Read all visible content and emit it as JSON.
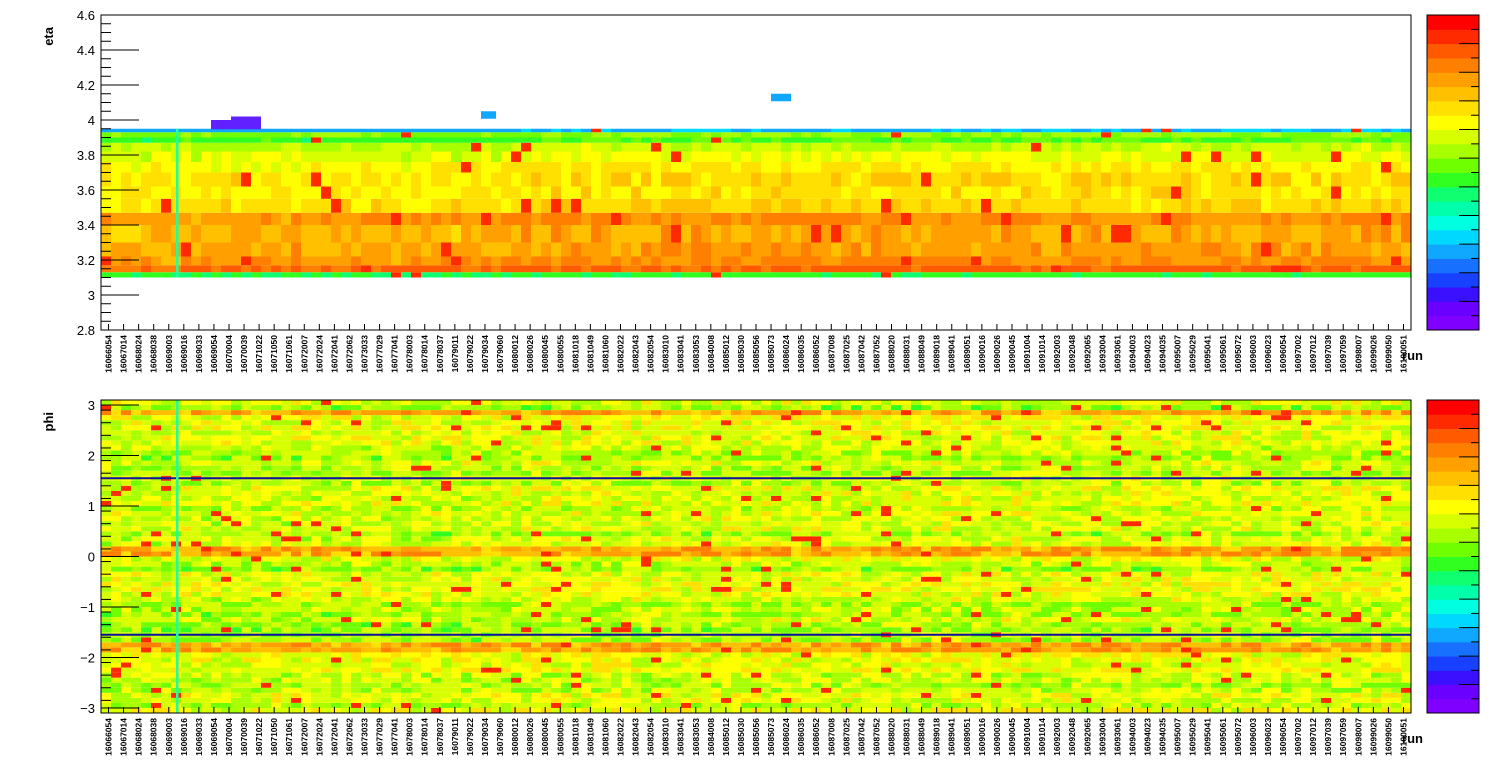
{
  "chart_data": [
    {
      "type": "heatmap",
      "ylabel": "eta",
      "xlabel": "run",
      "ylim": [
        2.8,
        4.6
      ],
      "yticks": [
        2.8,
        3,
        3.2,
        3.4,
        3.6,
        3.8,
        4,
        4.2,
        4.4,
        4.6
      ],
      "ytick_labels": [
        "2.8",
        "3",
        "3.2",
        "3.4",
        "3.6",
        "3.8",
        "4",
        "4.2",
        "4.4",
        "4.6"
      ],
      "populated_band": [
        3.1,
        3.95
      ],
      "edge_bins": [
        3.95,
        4.2
      ],
      "colorbar": "rainbow palette, purple (low) to red (high), no tick labels"
    },
    {
      "type": "heatmap",
      "ylabel": "phi",
      "xlabel": "run",
      "ylim": [
        -3.1,
        3.1
      ],
      "yticks": [
        -3,
        -2,
        -1,
        0,
        1,
        2,
        3
      ],
      "ytick_labels": [
        "−3",
        "−2",
        "−1",
        "0",
        "1",
        "2",
        "3"
      ],
      "low_rows": [
        1.55,
        -1.55
      ],
      "colorbar": "rainbow palette, purple (low) to red (high), no tick labels"
    }
  ],
  "runs": [
    "16066054",
    "16067014",
    "16068024",
    "16068038",
    "16069003",
    "16069016",
    "16069033",
    "16069054",
    "16070004",
    "16070039",
    "16071022",
    "16071050",
    "16071061",
    "16072007",
    "16072024",
    "16072041",
    "16072062",
    "16073033",
    "16077029",
    "16077041",
    "16078003",
    "16078014",
    "16078037",
    "16079011",
    "16079022",
    "16079034",
    "16079060",
    "16080012",
    "16080026",
    "16080045",
    "16080055",
    "16081018",
    "16081049",
    "16081060",
    "16082022",
    "16082043",
    "16082054",
    "16083010",
    "16083041",
    "16083053",
    "16084008",
    "16085012",
    "16085030",
    "16085056",
    "16085073",
    "16086024",
    "16086035",
    "16086052",
    "16087008",
    "16087025",
    "16087042",
    "16087052",
    "16088020",
    "16088031",
    "16088049",
    "16089018",
    "16089041",
    "16089051",
    "16090016",
    "16090026",
    "16090045",
    "16091004",
    "16091014",
    "16092003",
    "16092048",
    "16092065",
    "16093004",
    "16093061",
    "16094003",
    "16094023",
    "16094035",
    "16095007",
    "16095029",
    "16095041",
    "16095061",
    "16095072",
    "16096003",
    "16096023",
    "16096054",
    "16097002",
    "16097012",
    "16097039",
    "16097059",
    "16098007",
    "16099026",
    "16099050",
    "16100051"
  ],
  "colors": {
    "palette": [
      "#8000ff",
      "#6a00ff",
      "#3a10ff",
      "#1840ff",
      "#1870ff",
      "#10a8ff",
      "#00d8ff",
      "#00ffe0",
      "#00ffaa",
      "#10ff70",
      "#30ff20",
      "#70ff00",
      "#a8ff00",
      "#d8ff00",
      "#ffff00",
      "#ffe000",
      "#ffc000",
      "#ffa000",
      "#ff8000",
      "#ff5a00",
      "#ff2a00",
      "#ff0000"
    ],
    "axis": "#000000",
    "low_row": "#1010a0"
  }
}
